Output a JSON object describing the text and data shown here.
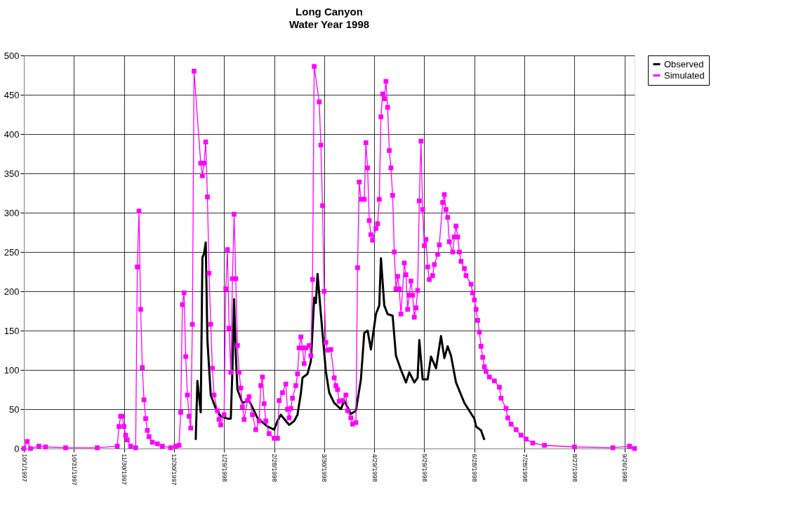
{
  "chart_data": {
    "type": "line",
    "title": "Long Canyon",
    "subtitle": "Water Year 1998",
    "xlim": [
      "1997-10-01",
      "1998-10-02"
    ],
    "ylim": [
      0,
      500
    ],
    "yticks": [
      0,
      50,
      100,
      150,
      200,
      250,
      300,
      350,
      400,
      450,
      500
    ],
    "xticks": [
      {
        "value": "1997-10-01",
        "label": "10/1/1997"
      },
      {
        "value": "1997-10-31",
        "label": "10/31/1997"
      },
      {
        "value": "1997-11-30",
        "label": "11/30/1997"
      },
      {
        "value": "1997-12-30",
        "label": "12/30/1997"
      },
      {
        "value": "1998-01-29",
        "label": "1/29/1998"
      },
      {
        "value": "1998-02-28",
        "label": "2/28/1998"
      },
      {
        "value": "1998-03-30",
        "label": "3/30/1998"
      },
      {
        "value": "1998-04-29",
        "label": "4/29/1998"
      },
      {
        "value": "1998-05-29",
        "label": "5/29/1998"
      },
      {
        "value": "1998-06-28",
        "label": "6/28/1998"
      },
      {
        "value": "1998-07-28",
        "label": "7/28/1998"
      },
      {
        "value": "1998-08-27",
        "label": "8/27/1998"
      },
      {
        "value": "1998-09-26",
        "label": "9/26/1998"
      }
    ],
    "grid": true,
    "legend": "right",
    "series": [
      {
        "name": "Observed",
        "color": "#000000",
        "marker": "none",
        "x": [
          "1998-01-12",
          "1998-01-13",
          "1998-01-15",
          "1998-01-16",
          "1998-01-17",
          "1998-01-18",
          "1998-01-19",
          "1998-01-21",
          "1998-01-24",
          "1998-01-27",
          "1998-01-31",
          "1998-02-02",
          "1998-02-03",
          "1998-02-04",
          "1998-02-05",
          "1998-02-06",
          "1998-02-09",
          "1998-02-13",
          "1998-02-18",
          "1998-02-24",
          "1998-02-28",
          "1998-03-02",
          "1998-03-04",
          "1998-03-07",
          "1998-03-09",
          "1998-03-12",
          "1998-03-14",
          "1998-03-16",
          "1998-03-17",
          "1998-03-20",
          "1998-03-22",
          "1998-03-23",
          "1998-03-24",
          "1998-03-25",
          "1998-03-26",
          "1998-03-28",
          "1998-03-31",
          "1998-04-02",
          "1998-04-05",
          "1998-04-09",
          "1998-04-11",
          "1998-04-15",
          "1998-04-18",
          "1998-04-21",
          "1998-04-23",
          "1998-04-25",
          "1998-04-27",
          "1998-04-30",
          "1998-05-02",
          "1998-05-03",
          "1998-05-05",
          "1998-05-07",
          "1998-05-10",
          "1998-05-12",
          "1998-05-15",
          "1998-05-18",
          "1998-05-20",
          "1998-05-23",
          "1998-05-25",
          "1998-05-26",
          "1998-05-28",
          "1998-05-31",
          "1998-06-02",
          "1998-06-05",
          "1998-06-08",
          "1998-06-10",
          "1998-06-12",
          "1998-06-14",
          "1998-06-17",
          "1998-06-22",
          "1998-06-28",
          "1998-06-29",
          "1998-07-02",
          "1998-07-04"
        ],
        "values": [
          11,
          86,
          46,
          243,
          248,
          262,
          138,
          68,
          51,
          41,
          38,
          38,
          100,
          190,
          120,
          75,
          58,
          61,
          39,
          28,
          24,
          35,
          43,
          35,
          30,
          35,
          43,
          70,
          90,
          95,
          111,
          150,
          192,
          185,
          222,
          171,
          98,
          71,
          58,
          50,
          61,
          44,
          48,
          88,
          147,
          150,
          126,
          171,
          182,
          242,
          182,
          171,
          169,
          118,
          100,
          84,
          97,
          84,
          90,
          138,
          88,
          88,
          117,
          102,
          143,
          115,
          130,
          118,
          84,
          58,
          38,
          28,
          23,
          11
        ]
      },
      {
        "name": "Simulated",
        "color": "#ff00ff",
        "marker": "square",
        "x": [
          "1997-10-01",
          "1997-10-03",
          "1997-10-05",
          "1997-10-10",
          "1997-10-14",
          "1997-10-26",
          "1997-11-14",
          "1997-11-26",
          "1997-11-27",
          "1997-11-28",
          "1997-11-29",
          "1997-11-30",
          "1997-12-01",
          "1997-12-02",
          "1997-12-04",
          "1997-12-07",
          "1997-12-08",
          "1997-12-09",
          "1997-12-10",
          "1997-12-11",
          "1997-12-12",
          "1997-12-13",
          "1997-12-14",
          "1997-12-15",
          "1997-12-17",
          "1997-12-20",
          "1997-12-23",
          "1997-12-28",
          "1997-12-31",
          "1998-01-02",
          "1998-01-03",
          "1998-01-04",
          "1998-01-05",
          "1998-01-06",
          "1998-01-07",
          "1998-01-08",
          "1998-01-09",
          "1998-01-10",
          "1998-01-11",
          "1998-01-15",
          "1998-01-16",
          "1998-01-17",
          "1998-01-18",
          "1998-01-19",
          "1998-01-20",
          "1998-01-21",
          "1998-01-22",
          "1998-01-23",
          "1998-01-25",
          "1998-01-26",
          "1998-01-27",
          "1998-01-29",
          "1998-01-30",
          "1998-01-31",
          "1998-02-01",
          "1998-02-02",
          "1998-02-03",
          "1998-02-04",
          "1998-02-05",
          "1998-02-06",
          "1998-02-07",
          "1998-02-08",
          "1998-02-09",
          "1998-02-10",
          "1998-02-12",
          "1998-02-13",
          "1998-02-15",
          "1998-02-17",
          "1998-02-19",
          "1998-02-20",
          "1998-02-21",
          "1998-02-22",
          "1998-02-23",
          "1998-02-25",
          "1998-02-28",
          "1998-03-02",
          "1998-03-03",
          "1998-03-05",
          "1998-03-07",
          "1998-03-08",
          "1998-03-09",
          "1998-03-10",
          "1998-03-11",
          "1998-03-13",
          "1998-03-14",
          "1998-03-15",
          "1998-03-16",
          "1998-03-17",
          "1998-03-18",
          "1998-03-19",
          "1998-03-21",
          "1998-03-22",
          "1998-03-23",
          "1998-03-24",
          "1998-03-27",
          "1998-03-28",
          "1998-03-29",
          "1998-03-30",
          "1998-03-31",
          "1998-04-01",
          "1998-04-03",
          "1998-04-05",
          "1998-04-06",
          "1998-04-07",
          "1998-04-08",
          "1998-04-10",
          "1998-04-12",
          "1998-04-13",
          "1998-04-15",
          "1998-04-16",
          "1998-04-18",
          "1998-04-19",
          "1998-04-20",
          "1998-04-21",
          "1998-04-23",
          "1998-04-24",
          "1998-04-25",
          "1998-04-26",
          "1998-04-27",
          "1998-04-28",
          "1998-04-30",
          "1998-05-01",
          "1998-05-02",
          "1998-05-03",
          "1998-05-04",
          "1998-05-05",
          "1998-05-06",
          "1998-05-07",
          "1998-05-08",
          "1998-05-09",
          "1998-05-10",
          "1998-05-11",
          "1998-05-12",
          "1998-05-13",
          "1998-05-14",
          "1998-05-15",
          "1998-05-17",
          "1998-05-18",
          "1998-05-19",
          "1998-05-20",
          "1998-05-21",
          "1998-05-22",
          "1998-05-23",
          "1998-05-24",
          "1998-05-25",
          "1998-05-26",
          "1998-05-27",
          "1998-05-28",
          "1998-05-29",
          "1998-05-30",
          "1998-05-31",
          "1998-06-01",
          "1998-06-03",
          "1998-06-04",
          "1998-06-06",
          "1998-06-07",
          "1998-06-09",
          "1998-06-10",
          "1998-06-11",
          "1998-06-12",
          "1998-06-13",
          "1998-06-15",
          "1998-06-16",
          "1998-06-17",
          "1998-06-18",
          "1998-06-19",
          "1998-06-20",
          "1998-06-22",
          "1998-06-23",
          "1998-06-26",
          "1998-06-27",
          "1998-06-28",
          "1998-06-29",
          "1998-06-30",
          "1998-07-01",
          "1998-07-02",
          "1998-07-03",
          "1998-07-04",
          "1998-07-05",
          "1998-07-07",
          "1998-07-10",
          "1998-07-13",
          "1998-07-14",
          "1998-07-17",
          "1998-07-18",
          "1998-07-20",
          "1998-07-23",
          "1998-07-26",
          "1998-07-29",
          "1998-08-02",
          "1998-08-09",
          "1998-08-27",
          "1998-09-19",
          "1998-09-29",
          "1998-10-02"
        ],
        "values": [
          0,
          9,
          0,
          3,
          2,
          1,
          1,
          3,
          28,
          41,
          41,
          28,
          17,
          11,
          3,
          1,
          231,
          302,
          177,
          103,
          62,
          38,
          23,
          15,
          8,
          6,
          3,
          1,
          3,
          4,
          46,
          183,
          198,
          117,
          68,
          41,
          26,
          158,
          480,
          363,
          347,
          363,
          390,
          320,
          223,
          158,
          102,
          68,
          48,
          37,
          30,
          43,
          203,
          253,
          153,
          97,
          216,
          298,
          216,
          131,
          97,
          77,
          53,
          37,
          61,
          66,
          43,
          24,
          35,
          80,
          91,
          57,
          35,
          19,
          13,
          13,
          61,
          71,
          82,
          50,
          39,
          51,
          64,
          80,
          95,
          128,
          142,
          128,
          108,
          128,
          131,
          118,
          215,
          486,
          441,
          386,
          309,
          200,
          135,
          125,
          126,
          90,
          80,
          75,
          60,
          61,
          68,
          48,
          39,
          31,
          33,
          230,
          339,
          317,
          317,
          389,
          357,
          290,
          272,
          265,
          280,
          286,
          317,
          422,
          451,
          445,
          467,
          434,
          379,
          357,
          322,
          250,
          203,
          219,
          203,
          171,
          236,
          221,
          177,
          195,
          213,
          195,
          167,
          179,
          201,
          315,
          391,
          304,
          258,
          266,
          231,
          215,
          220,
          234,
          247,
          259,
          313,
          323,
          304,
          294,
          263,
          250,
          269,
          283,
          269,
          250,
          238,
          229,
          220,
          209,
          198,
          189,
          177,
          163,
          148,
          130,
          116,
          104,
          98,
          91,
          86,
          78,
          64,
          51,
          39,
          31,
          24,
          17,
          12,
          7,
          4,
          2,
          1,
          3,
          0
        ]
      }
    ]
  }
}
